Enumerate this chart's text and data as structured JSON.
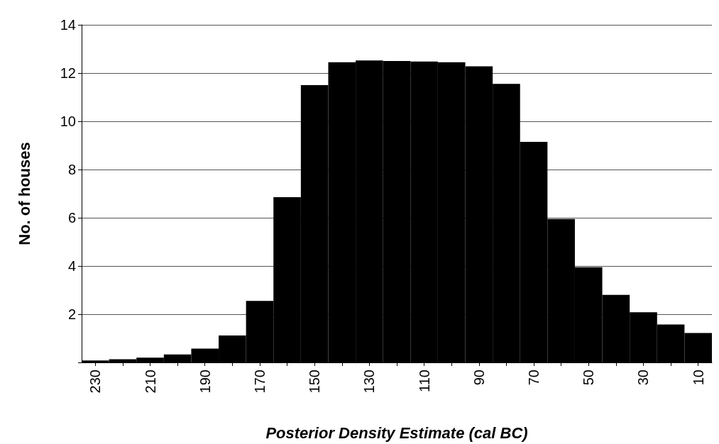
{
  "chart_data": {
    "type": "bar",
    "xlabel": "Posterior Density Estimate (cal BC)",
    "ylabel": "No. of houses",
    "categories": [
      "230",
      null,
      "210",
      null,
      "190",
      null,
      "170",
      null,
      "150",
      null,
      "130",
      null,
      "110",
      null,
      "90",
      null,
      "70",
      null,
      "50",
      null,
      "30",
      null,
      "10"
    ],
    "values": [
      0.08,
      0.13,
      0.2,
      0.33,
      0.57,
      1.12,
      2.55,
      6.85,
      11.5,
      12.45,
      12.52,
      12.5,
      12.48,
      12.45,
      12.28,
      11.55,
      9.15,
      5.95,
      3.95,
      2.8,
      2.08,
      1.57,
      1.22
    ],
    "color": "#000000",
    "ylim": [
      0,
      14
    ],
    "yticks": [
      {
        "value": 0,
        "label": null
      },
      2,
      4,
      6,
      8,
      10,
      12,
      14
    ],
    "grid": "y"
  }
}
